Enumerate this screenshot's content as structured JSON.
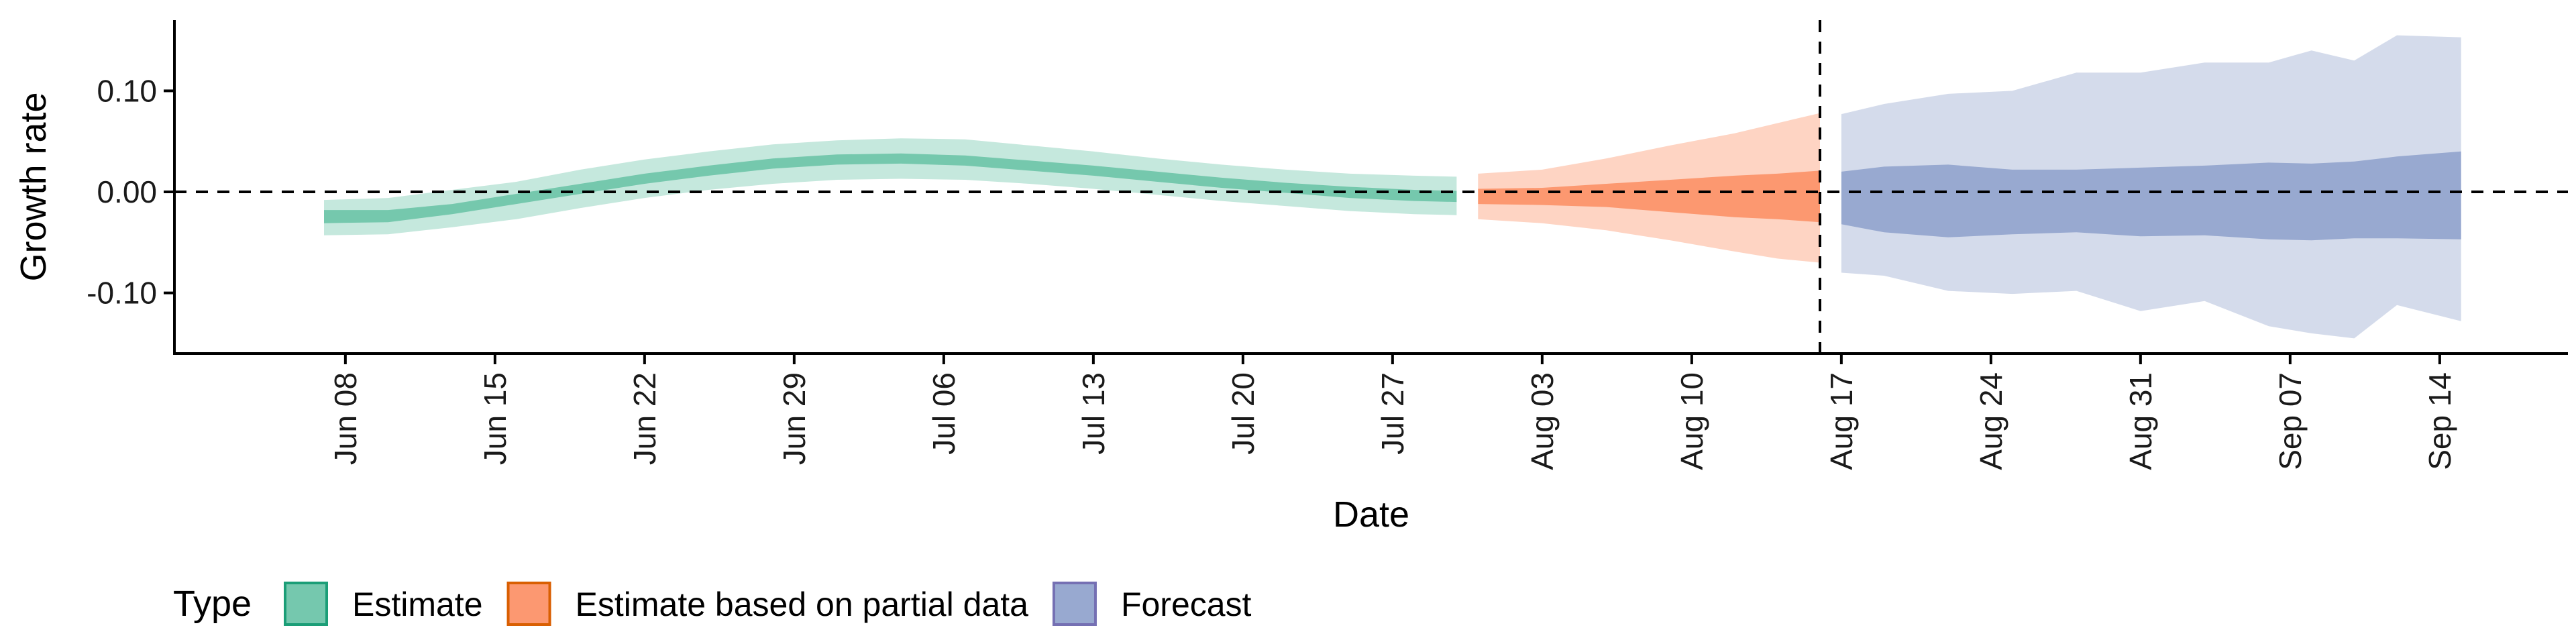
{
  "chart_data": {
    "type": "area",
    "xlabel": "Date",
    "ylabel": "Growth rate",
    "ylim": [
      -0.16,
      0.17
    ],
    "xlim": [
      "2020-05-31",
      "2020-09-20"
    ],
    "x_ticks": [
      "2020-06-08",
      "2020-06-15",
      "2020-06-22",
      "2020-06-29",
      "2020-07-06",
      "2020-07-13",
      "2020-07-20",
      "2020-07-27",
      "2020-08-03",
      "2020-08-10",
      "2020-08-17",
      "2020-08-24",
      "2020-08-31",
      "2020-09-07",
      "2020-09-14"
    ],
    "x_tick_labels": [
      "Jun 08",
      "Jun 15",
      "Jun 22",
      "Jun 29",
      "Jul 06",
      "Jul 13",
      "Jul 20",
      "Jul 27",
      "Aug 03",
      "Aug 10",
      "Aug 17",
      "Aug 24",
      "Aug 31",
      "Sep 07",
      "Sep 14"
    ],
    "y_ticks": [
      -0.1,
      0.0,
      0.1
    ],
    "y_tick_labels": [
      "-0.10",
      "0.00",
      "0.10"
    ],
    "hline_y": 0.0,
    "vline_x": "2020-08-16",
    "grid": false,
    "legend": {
      "title": "Type",
      "position": "bottom-left",
      "entries": [
        "Estimate",
        "Estimate based on partial data",
        "Forecast"
      ]
    },
    "series": [
      {
        "name": "Estimate",
        "fill_color": "#66c2a5",
        "border_color": "#1b9e77",
        "points": [
          {
            "x": "2020-06-07",
            "lo90": -0.043,
            "lo50": -0.031,
            "hi50": -0.018,
            "hi90": -0.008
          },
          {
            "x": "2020-06-10",
            "lo90": -0.042,
            "lo50": -0.03,
            "hi50": -0.018,
            "hi90": -0.006
          },
          {
            "x": "2020-06-13",
            "lo90": -0.035,
            "lo50": -0.022,
            "hi50": -0.012,
            "hi90": 0.002
          },
          {
            "x": "2020-06-16",
            "lo90": -0.027,
            "lo50": -0.012,
            "hi50": -0.002,
            "hi90": 0.01
          },
          {
            "x": "2020-06-19",
            "lo90": -0.016,
            "lo50": -0.002,
            "hi50": 0.008,
            "hi90": 0.022
          },
          {
            "x": "2020-06-22",
            "lo90": -0.006,
            "lo50": 0.008,
            "hi50": 0.018,
            "hi90": 0.032
          },
          {
            "x": "2020-06-25",
            "lo90": 0.002,
            "lo50": 0.016,
            "hi50": 0.026,
            "hi90": 0.04
          },
          {
            "x": "2020-06-28",
            "lo90": 0.008,
            "lo50": 0.023,
            "hi50": 0.033,
            "hi90": 0.047
          },
          {
            "x": "2020-07-01",
            "lo90": 0.012,
            "lo50": 0.027,
            "hi50": 0.037,
            "hi90": 0.051
          },
          {
            "x": "2020-07-04",
            "lo90": 0.013,
            "lo50": 0.028,
            "hi50": 0.038,
            "hi90": 0.053
          },
          {
            "x": "2020-07-07",
            "lo90": 0.012,
            "lo50": 0.026,
            "hi50": 0.036,
            "hi90": 0.052
          },
          {
            "x": "2020-07-10",
            "lo90": 0.008,
            "lo50": 0.021,
            "hi50": 0.031,
            "hi90": 0.046
          },
          {
            "x": "2020-07-13",
            "lo90": 0.003,
            "lo50": 0.016,
            "hi50": 0.026,
            "hi90": 0.04
          },
          {
            "x": "2020-07-16",
            "lo90": -0.003,
            "lo50": 0.01,
            "hi50": 0.02,
            "hi90": 0.033
          },
          {
            "x": "2020-07-19",
            "lo90": -0.009,
            "lo50": 0.004,
            "hi50": 0.014,
            "hi90": 0.027
          },
          {
            "x": "2020-07-22",
            "lo90": -0.014,
            "lo50": -0.001,
            "hi50": 0.009,
            "hi90": 0.022
          },
          {
            "x": "2020-07-25",
            "lo90": -0.019,
            "lo50": -0.006,
            "hi50": 0.005,
            "hi90": 0.018
          },
          {
            "x": "2020-07-28",
            "lo90": -0.022,
            "lo50": -0.009,
            "hi50": 0.002,
            "hi90": 0.016
          },
          {
            "x": "2020-07-30",
            "lo90": -0.023,
            "lo50": -0.01,
            "hi50": 0.001,
            "hi90": 0.015
          }
        ]
      },
      {
        "name": "Estimate based on partial data",
        "fill_color": "#fc8d62",
        "border_color": "#d95f02",
        "points": [
          {
            "x": "2020-07-31",
            "lo90": -0.027,
            "lo50": -0.012,
            "hi50": 0.003,
            "hi90": 0.018
          },
          {
            "x": "2020-08-03",
            "lo90": -0.031,
            "lo50": -0.013,
            "hi50": 0.004,
            "hi90": 0.022
          },
          {
            "x": "2020-08-06",
            "lo90": -0.038,
            "lo50": -0.015,
            "hi50": 0.008,
            "hi90": 0.033
          },
          {
            "x": "2020-08-09",
            "lo90": -0.048,
            "lo50": -0.02,
            "hi50": 0.012,
            "hi90": 0.046
          },
          {
            "x": "2020-08-12",
            "lo90": -0.059,
            "lo50": -0.025,
            "hi50": 0.016,
            "hi90": 0.058
          },
          {
            "x": "2020-08-14",
            "lo90": -0.066,
            "lo50": -0.027,
            "hi50": 0.018,
            "hi90": 0.068
          },
          {
            "x": "2020-08-16",
            "lo90": -0.07,
            "lo50": -0.03,
            "hi50": 0.021,
            "hi90": 0.078
          }
        ]
      },
      {
        "name": "Forecast",
        "fill_color": "#8da0cb",
        "border_color": "#7570b3",
        "points": [
          {
            "x": "2020-08-17",
            "lo90": -0.08,
            "lo50": -0.032,
            "hi50": 0.02,
            "hi90": 0.077
          },
          {
            "x": "2020-08-19",
            "lo90": -0.083,
            "lo50": -0.04,
            "hi50": 0.025,
            "hi90": 0.087
          },
          {
            "x": "2020-08-22",
            "lo90": -0.098,
            "lo50": -0.045,
            "hi50": 0.027,
            "hi90": 0.097
          },
          {
            "x": "2020-08-25",
            "lo90": -0.101,
            "lo50": -0.042,
            "hi50": 0.022,
            "hi90": 0.1
          },
          {
            "x": "2020-08-28",
            "lo90": -0.098,
            "lo50": -0.04,
            "hi50": 0.022,
            "hi90": 0.118
          },
          {
            "x": "2020-08-31",
            "lo90": -0.118,
            "lo50": -0.044,
            "hi50": 0.024,
            "hi90": 0.118
          },
          {
            "x": "2020-09-03",
            "lo90": -0.108,
            "lo50": -0.043,
            "hi50": 0.026,
            "hi90": 0.128
          },
          {
            "x": "2020-09-06",
            "lo90": -0.133,
            "lo50": -0.047,
            "hi50": 0.029,
            "hi90": 0.128
          },
          {
            "x": "2020-09-08",
            "lo90": -0.14,
            "lo50": -0.048,
            "hi50": 0.028,
            "hi90": 0.14
          },
          {
            "x": "2020-09-10",
            "lo90": -0.145,
            "lo50": -0.046,
            "hi50": 0.03,
            "hi90": 0.13
          },
          {
            "x": "2020-09-12",
            "lo90": -0.112,
            "lo50": -0.046,
            "hi50": 0.035,
            "hi90": 0.155
          },
          {
            "x": "2020-09-15",
            "lo90": -0.128,
            "lo50": -0.047,
            "hi50": 0.04,
            "hi90": 0.153
          }
        ]
      }
    ]
  }
}
